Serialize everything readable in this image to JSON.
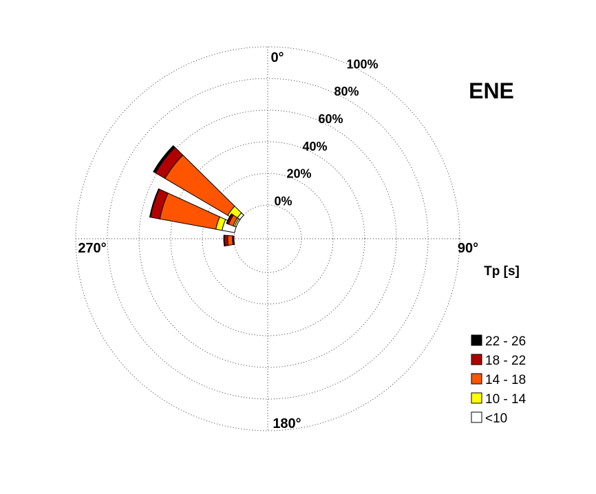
{
  "chart_data": {
    "type": "polar-rose",
    "title": "ENE",
    "legend_title": "Tp [s]",
    "radial_ticks": [
      "0%",
      "20%",
      "40%",
      "60%",
      "80%",
      "100%"
    ],
    "angle_ticks": [
      "0°",
      "90°",
      "180°",
      "270°"
    ],
    "legend": [
      {
        "label": "22 - 26",
        "color": "#000000"
      },
      {
        "label": "18 - 22",
        "color": "#b00000"
      },
      {
        "label": "14 - 18",
        "color": "#ff5500"
      },
      {
        "label": "10 - 14",
        "color": "#ffff00"
      },
      {
        "label": "<10",
        "color": "#ffffff"
      }
    ],
    "sectors": [
      {
        "direction_deg": 307.5,
        "width_deg": 15,
        "cumulative_pct": [
          2,
          8,
          54,
          61,
          62.5
        ]
      },
      {
        "direction_deg": 287.5,
        "width_deg": 15,
        "cumulative_pct": [
          8,
          12,
          48,
          54,
          54.5
        ]
      },
      {
        "direction_deg": 267.5,
        "width_deg": 15,
        "cumulative_pct": [
          0.5,
          1,
          4,
          6,
          6.5
        ]
      },
      {
        "direction_deg": 297.5,
        "width_deg": 15,
        "cumulative_pct": [
          1,
          2,
          5,
          6,
          6.5
        ]
      }
    ]
  }
}
